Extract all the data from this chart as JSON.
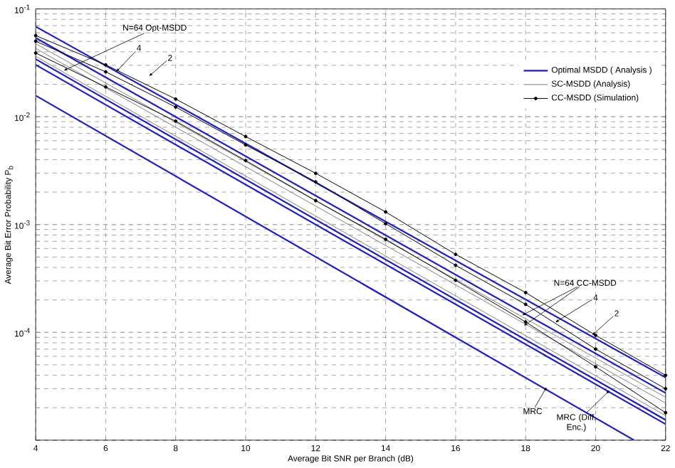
{
  "chart_data": {
    "type": "line",
    "xlabel": "Average Bit SNR per Branch (dB)",
    "ylabel": "Average Bit Error Probability P$_{b}$",
    "xlim": [
      4,
      22
    ],
    "xticks": [
      4,
      6,
      8,
      10,
      12,
      14,
      16,
      18,
      20,
      22
    ],
    "ylim": [
      1e-05,
      0.1
    ],
    "yticks": [
      {
        "value": 1e-05,
        "label": null
      },
      {
        "value": 0.0001,
        "label": "10$^{-4}$"
      },
      {
        "value": 0.001,
        "label": "10$^{-3}$"
      },
      {
        "value": 0.01,
        "label": "10$^{-2}$"
      },
      {
        "value": 0.1,
        "label": "10$^{-1}$"
      }
    ],
    "log": "y",
    "grid": true,
    "legend": "top right",
    "series": [
      {
        "name": "Optimal MSDD ( Analysis )",
        "color": "#1c1cc8",
        "marker": "none",
        "x": [
          4,
          22
        ],
        "values": [
          0.0686,
          3.81e-05
        ]
      },
      {
        "color": "#1c1cc8",
        "marker": "none",
        "x": [
          4,
          22
        ],
        "values": [
          0.0539,
          2.74e-05
        ]
      },
      {
        "color": "#1c1cc8",
        "marker": "none",
        "x": [
          4,
          22
        ],
        "values": [
          0.0342,
          1.54e-05
        ]
      },
      {
        "color": "#1c1cc8",
        "marker": "none",
        "x": [
          4,
          22
        ],
        "values": [
          0.0303,
          1.41e-05
        ]
      },
      {
        "color": "#1c1cc8",
        "marker": "none",
        "x": [
          4,
          21.1
        ],
        "values": [
          0.0157,
          1e-05
        ]
      },
      {
        "name": "SC-MSDD   (Analysis)",
        "color": "#808080",
        "marker": "none",
        "x": [
          4,
          22
        ],
        "values": [
          0.0476,
          2.5e-05
        ]
      },
      {
        "color": "#808080",
        "marker": "none",
        "x": [
          4,
          22
        ],
        "values": [
          0.043,
          2.21e-05
        ]
      },
      {
        "color": "#808080",
        "marker": "none",
        "x": [
          4,
          22
        ],
        "values": [
          0.0363,
          1.69e-05
        ]
      },
      {
        "name": "CC-MSDD (Simulation)",
        "color": "#000000",
        "marker": "circle",
        "x": [
          4,
          6,
          8,
          10,
          12,
          14,
          16,
          18,
          20,
          22
        ],
        "values": [
          0.0566,
          0.0303,
          0.0146,
          0.00655,
          0.00299,
          0.00131,
          0.000529,
          0.000234,
          9.4e-05,
          4e-05
        ]
      },
      {
        "color": "#000000",
        "marker": "circle",
        "x": [
          4,
          6,
          8,
          10,
          12,
          14,
          16,
          18,
          20,
          22
        ],
        "values": [
          0.0502,
          0.0261,
          0.0123,
          0.00547,
          0.00249,
          0.00102,
          0.000419,
          0.000182,
          7e-05,
          3e-05
        ]
      },
      {
        "color": "#000000",
        "marker": "circle",
        "x": [
          4,
          6,
          8,
          10,
          12,
          14,
          16,
          18,
          20,
          22
        ],
        "values": [
          0.039,
          0.0189,
          0.0091,
          0.00392,
          0.00167,
          0.00073,
          0.000304,
          0.000125,
          4.8e-05,
          1.8e-05
        ]
      }
    ],
    "annotations": [
      {
        "text": "N=64  Opt-MSDD",
        "x": 4.8,
        "y": 0.0268
      },
      {
        "text": "4",
        "x": 6.3,
        "y": 0.0261
      },
      {
        "text": "2",
        "x": 7.24,
        "y": 0.0238
      },
      {
        "text": "N=64  CC-MSDD",
        "x": 17.9,
        "y": 0.000144
      },
      {
        "text": "4",
        "x": 18.85,
        "y": 0.000124
      },
      {
        "text": "2",
        "x": 19.9,
        "y": 9.4e-05
      },
      {
        "text": "MRC",
        "x": 18.6,
        "y": 3.1e-05
      },
      {
        "text": "MRC (Diff. Enc.)",
        "x": 20.4,
        "y": 2.9e-05
      }
    ]
  }
}
